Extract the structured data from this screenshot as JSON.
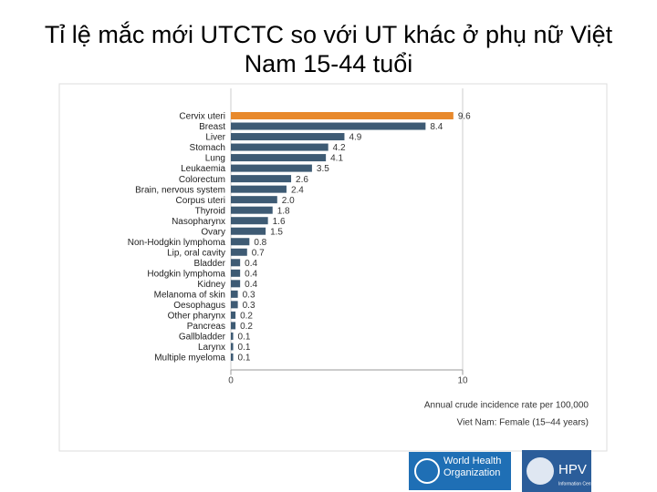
{
  "chart_data": {
    "type": "barh",
    "title": "Tỉ lệ mắc mới UTCTC so với UT khác ở phụ nữ Việt Nam 15-44 tuổi",
    "categories": [
      "Cervix uteri",
      "Breast",
      "Liver",
      "Stomach",
      "Lung",
      "Leukaemia",
      "Colorectum",
      "Brain, nervous system",
      "Corpus uteri",
      "Thyroid",
      "Nasopharynx",
      "Ovary",
      "Non-Hodgkin lymphoma",
      "Lip, oral cavity",
      "Bladder",
      "Hodgkin lymphoma",
      "Kidney",
      "Melanoma of skin",
      "Oesophagus",
      "Other pharynx",
      "Pancreas",
      "Gallbladder",
      "Larynx",
      "Multiple myeloma"
    ],
    "values": [
      9.6,
      8.4,
      4.9,
      4.2,
      4.1,
      3.5,
      2.6,
      2.4,
      2.0,
      1.8,
      1.6,
      1.5,
      0.8,
      0.7,
      0.4,
      0.4,
      0.4,
      0.3,
      0.3,
      0.2,
      0.2,
      0.1,
      0.1,
      0.1
    ],
    "value_labels": [
      "9.6",
      "8.4",
      "4.9",
      "4.2",
      "4.1",
      "3.5",
      "2.6",
      "2.4",
      "2.0",
      "1.8",
      "1.6",
      "1.5",
      "0.8",
      "0.7",
      "0.4",
      "0.4",
      "0.4",
      "0.3",
      "0.3",
      "0.2",
      "0.2",
      "0.1",
      "0.1",
      "0.1"
    ],
    "colors": [
      "#e8892c",
      "#3e5b74",
      "#3e5b74",
      "#3e5b74",
      "#3e5b74",
      "#3e5b74",
      "#3e5b74",
      "#3e5b74",
      "#3e5b74",
      "#3e5b74",
      "#3e5b74",
      "#3e5b74",
      "#3e5b74",
      "#3e5b74",
      "#3e5b74",
      "#3e5b74",
      "#3e5b74",
      "#3e5b74",
      "#3e5b74",
      "#3e5b74",
      "#3e5b74",
      "#3e5b74",
      "#3e5b74",
      "#3e5b74"
    ],
    "xlim": [
      0,
      10
    ],
    "xticks": [
      0,
      10
    ],
    "grid": true,
    "xlabel": "Annual crude incidence rate per 100,000",
    "subtitle": "Viet Nam: Female (15–44 years)"
  },
  "logos": {
    "who": "World Health Organization",
    "hpv": "HPV",
    "hpv_sub": "Information Centre"
  }
}
